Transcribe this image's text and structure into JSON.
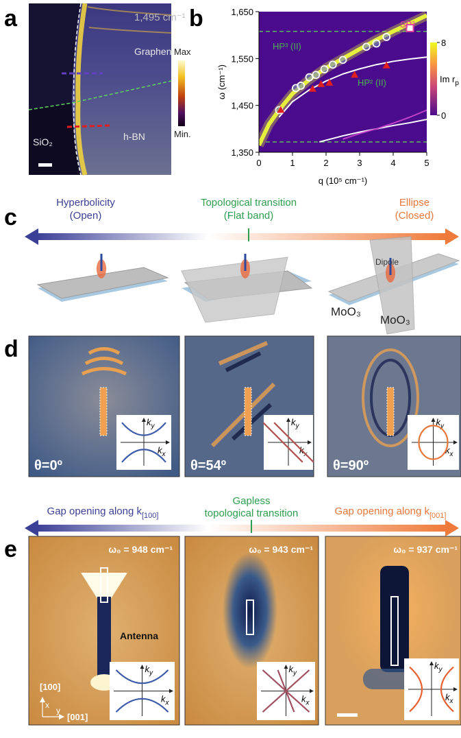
{
  "panel_a": {
    "label": "a",
    "frequency": "1,495 cm⁻¹",
    "regions": {
      "graphene": "Graphene",
      "substrate": "SiO₂",
      "hbn": "h-BN"
    },
    "colorbar": {
      "max": "Max",
      "min": "Min."
    }
  },
  "chart_data": {
    "type": "line",
    "panel_label": "b",
    "xlabel": "q (10⁵ cm⁻¹)",
    "ylabel": "ω (cm⁻¹)",
    "xlim": [
      0,
      5
    ],
    "ylim": [
      1350,
      1650
    ],
    "xticks": [
      0,
      1,
      2,
      3,
      4,
      5
    ],
    "yticks": [
      {
        "value": 1350,
        "label": "1,350"
      },
      {
        "value": 1450,
        "label": "1,450"
      },
      {
        "value": 1550,
        "label": "1,550"
      },
      {
        "value": 1650,
        "label": "1,650"
      }
    ],
    "grid": false,
    "background": "#4a0c8c",
    "reference_lines": {
      "values": [
        1372,
        1608
      ],
      "color": "#5cb85c"
    },
    "series": [
      {
        "style": "band",
        "color": "#e6f03c",
        "x": [
          0,
          0.3,
          0.6,
          1,
          1.5,
          2,
          2.5,
          3,
          3.5,
          4,
          4.5,
          5
        ],
        "values": [
          1365,
          1410,
          1440,
          1475,
          1505,
          1530,
          1550,
          1570,
          1590,
          1608,
          1625,
          1642
        ]
      },
      {
        "style": "line",
        "color": "#ffffff",
        "x": [
          0.6,
          1,
          1.5,
          2,
          2.5,
          3,
          3.5,
          4,
          4.5,
          5
        ],
        "values": [
          1425,
          1458,
          1483,
          1502,
          1517,
          1528,
          1537,
          1544,
          1549,
          1553
        ]
      },
      {
        "style": "line",
        "color": "#ffffff",
        "x": [
          1.8,
          2.5,
          3,
          3.5,
          4,
          4.5,
          5
        ],
        "values": [
          1372,
          1385,
          1393,
          1400,
          1407,
          1413,
          1420
        ]
      },
      {
        "style": "line",
        "color": "#c040c8",
        "x": [
          2.5,
          3,
          3.5,
          4,
          4.5,
          5
        ],
        "values": [
          1378,
          1390,
          1400,
          1412,
          1425,
          1440
        ]
      },
      {
        "style": "circle",
        "color": "#ffffff",
        "x": [
          0.6,
          1.1,
          1.25,
          1.5,
          1.7,
          1.95,
          2.2,
          2.5,
          3.2,
          3.5,
          3.8
        ],
        "values": [
          1440,
          1487,
          1492,
          1510,
          1515,
          1527,
          1537,
          1547,
          1575,
          1582,
          1596
        ]
      },
      {
        "style": "triangle",
        "color": "#e02020",
        "x": [
          0.65,
          1.6,
          1.85,
          2.1,
          2.85,
          3.8
        ],
        "values": [
          1440,
          1485,
          1495,
          1498,
          1515,
          1535
        ]
      },
      {
        "style": "square",
        "color": "#e040a0",
        "x": [
          4.5
        ],
        "values": [
          1615
        ]
      }
    ],
    "annotations": [
      {
        "text": "SP³",
        "color": "#e040a0"
      },
      {
        "text": "HP³ (II)",
        "color": "#4caf50"
      },
      {
        "text": "HP² (II)",
        "color": "#4caf50"
      }
    ],
    "colorbar": {
      "label": "Im r",
      "sub": "p",
      "lim": [
        0,
        8
      ],
      "ticks": [
        0,
        8
      ]
    }
  },
  "panel_c": {
    "label": "c",
    "states": [
      {
        "title": "Hyperbolicity",
        "subtitle": "(Open)",
        "color": "#3b3f96"
      },
      {
        "title": "Topological transition",
        "subtitle": "(Flat band)",
        "color": "#2e9e4f"
      },
      {
        "title": "Ellipse",
        "subtitle": "(Closed)",
        "color": "#e8773a"
      }
    ],
    "dipole": "Dipole",
    "material": "MoO₃"
  },
  "panel_d": {
    "label": "d",
    "angles": [
      "θ=0º",
      "θ=54º",
      "θ=90º"
    ],
    "inset_labels": {
      "k": "k",
      "x": "x",
      "y": "y"
    },
    "states": [
      {
        "text": "Gap opening along k",
        "sub": "[100]"
      },
      {
        "lines": [
          "Gapless",
          "topological transition"
        ]
      },
      {
        "text": "Gap opening along k",
        "sub": "[001]"
      }
    ]
  },
  "panel_e": {
    "label": "e",
    "frequencies": [
      "ω₀ = 948 cm⁻¹",
      "ω₀ = 943 cm⁻¹",
      "ω₀ = 937 cm⁻¹"
    ],
    "antenna": "Antenna",
    "axes": {
      "x_dir": "[100]",
      "y_dir": "[001]",
      "x": "x",
      "y": "y"
    }
  }
}
